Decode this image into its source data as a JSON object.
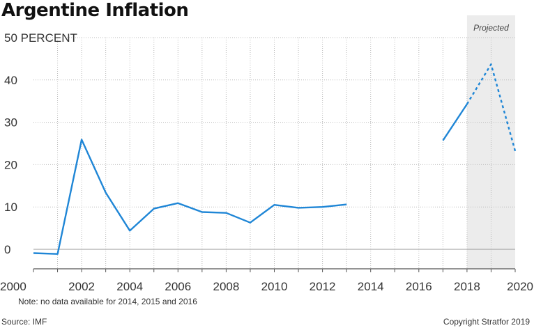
{
  "title": "Argentine Inflation",
  "note": "Note: no data available for 2014, 2015 and 2016",
  "source": "Source: IMF",
  "copyright": "Copyright Stratfor 2019",
  "projected_label": "Projected",
  "colors": {
    "line": "#1f86d6",
    "projected_bg": "#ececec",
    "grid": "#bbbbbb",
    "axis": "#555555"
  },
  "chart_data": {
    "type": "line",
    "title": "Argentine Inflation",
    "ylabel": "PERCENT",
    "xlim": [
      2000,
      2020
    ],
    "ylim": [
      -4,
      50
    ],
    "x_ticks": [
      2000,
      2002,
      2004,
      2006,
      2008,
      2010,
      2012,
      2014,
      2016,
      2018,
      2020
    ],
    "y_ticks": [
      0,
      10,
      20,
      30,
      40,
      50
    ],
    "y_tick_labels": [
      "0",
      "10",
      "20",
      "30",
      "40",
      "50 PERCENT"
    ],
    "projected_range": [
      2018,
      2020
    ],
    "grid": true,
    "series": [
      {
        "style": "solid",
        "x": [
          2000,
          2001,
          2002,
          2003,
          2004,
          2005,
          2006,
          2007,
          2008,
          2009,
          2010,
          2011,
          2012,
          2013
        ],
        "y": [
          -0.9,
          -1.1,
          25.9,
          13.4,
          4.4,
          9.6,
          10.9,
          8.8,
          8.6,
          6.3,
          10.5,
          9.8,
          10.0,
          10.6
        ]
      },
      {
        "style": "solid",
        "x": [
          2017,
          2018
        ],
        "y": [
          25.7,
          34.3
        ]
      },
      {
        "style": "dashed",
        "x": [
          2018,
          2019,
          2020
        ],
        "y": [
          34.3,
          43.7,
          23.2
        ]
      }
    ]
  }
}
